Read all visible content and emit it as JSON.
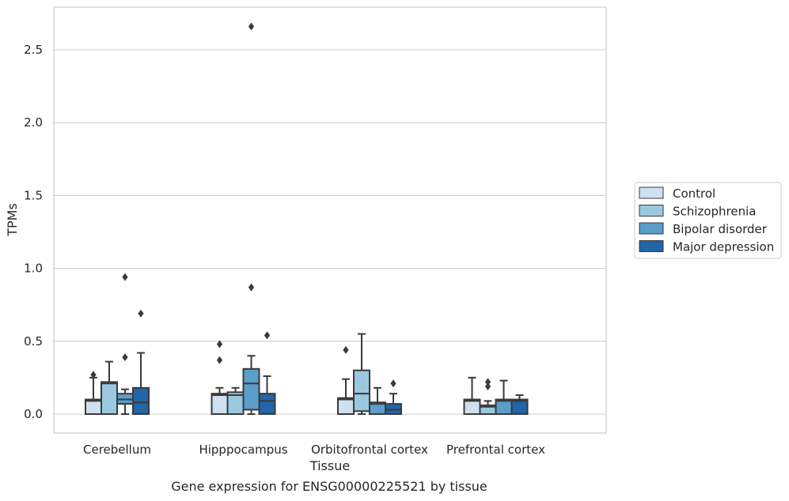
{
  "caption": "Gene expression for ENSG00000225521 by tissue",
  "chart_data": {
    "type": "box",
    "xlabel": "Tissue",
    "ylabel": "TPMs",
    "ylim": [
      -0.13,
      2.8
    ],
    "yticks": [
      0.0,
      0.5,
      1.0,
      1.5,
      2.0,
      2.5
    ],
    "ytick_labels": [
      "0.0",
      "0.5",
      "1.0",
      "1.5",
      "2.0",
      "2.5"
    ],
    "grid": "horizontal",
    "legend_position": "right",
    "categories": [
      "Cerebellum",
      "Hipppocampus",
      "Orbitofrontal cortex",
      "Prefrontal cortex"
    ],
    "series": [
      {
        "name": "Control",
        "color": "#cfe0f0",
        "boxes": [
          {
            "q1": 0.0,
            "median": 0.09,
            "q3": 0.1,
            "whisker_low": 0.0,
            "whisker_high": 0.25,
            "outliers": [
              0.27
            ]
          },
          {
            "q1": 0.0,
            "median": 0.13,
            "q3": 0.14,
            "whisker_low": 0.0,
            "whisker_high": 0.18,
            "outliers": [
              0.37,
              0.48
            ]
          },
          {
            "q1": 0.0,
            "median": 0.1,
            "q3": 0.11,
            "whisker_low": 0.0,
            "whisker_high": 0.24,
            "outliers": [
              0.44
            ]
          },
          {
            "q1": 0.0,
            "median": 0.09,
            "q3": 0.1,
            "whisker_low": 0.0,
            "whisker_high": 0.25,
            "outliers": []
          }
        ]
      },
      {
        "name": "Schizophrenia",
        "color": "#9ac8e0",
        "boxes": [
          {
            "q1": 0.0,
            "median": 0.21,
            "q3": 0.22,
            "whisker_low": 0.0,
            "whisker_high": 0.36,
            "outliers": []
          },
          {
            "q1": 0.0,
            "median": 0.13,
            "q3": 0.15,
            "whisker_low": 0.0,
            "whisker_high": 0.18,
            "outliers": []
          },
          {
            "q1": 0.02,
            "median": 0.14,
            "q3": 0.3,
            "whisker_low": 0.0,
            "whisker_high": 0.55,
            "outliers": []
          },
          {
            "q1": 0.0,
            "median": 0.05,
            "q3": 0.06,
            "whisker_low": 0.0,
            "whisker_high": 0.09,
            "outliers": [
              0.19,
              0.22
            ]
          }
        ]
      },
      {
        "name": "Bipolar disorder",
        "color": "#5a9ec9",
        "boxes": [
          {
            "q1": 0.07,
            "median": 0.1,
            "q3": 0.14,
            "whisker_low": 0.0,
            "whisker_high": 0.17,
            "outliers": [
              0.39,
              0.94
            ]
          },
          {
            "q1": 0.03,
            "median": 0.21,
            "q3": 0.31,
            "whisker_low": 0.0,
            "whisker_high": 0.4,
            "outliers": [
              0.87,
              2.66
            ]
          },
          {
            "q1": 0.0,
            "median": 0.07,
            "q3": 0.08,
            "whisker_low": 0.0,
            "whisker_high": 0.18,
            "outliers": []
          },
          {
            "q1": 0.0,
            "median": 0.09,
            "q3": 0.1,
            "whisker_low": 0.0,
            "whisker_high": 0.23,
            "outliers": []
          }
        ]
      },
      {
        "name": "Major depression",
        "color": "#2265a8",
        "boxes": [
          {
            "q1": 0.0,
            "median": 0.08,
            "q3": 0.18,
            "whisker_low": 0.0,
            "whisker_high": 0.42,
            "outliers": [
              0.69
            ]
          },
          {
            "q1": 0.0,
            "median": 0.09,
            "q3": 0.14,
            "whisker_low": 0.0,
            "whisker_high": 0.26,
            "outliers": [
              0.54
            ]
          },
          {
            "q1": 0.0,
            "median": 0.03,
            "q3": 0.07,
            "whisker_low": 0.0,
            "whisker_high": 0.14,
            "outliers": [
              0.21
            ]
          },
          {
            "q1": 0.0,
            "median": 0.09,
            "q3": 0.1,
            "whisker_low": 0.0,
            "whisker_high": 0.13,
            "outliers": []
          }
        ]
      }
    ]
  }
}
